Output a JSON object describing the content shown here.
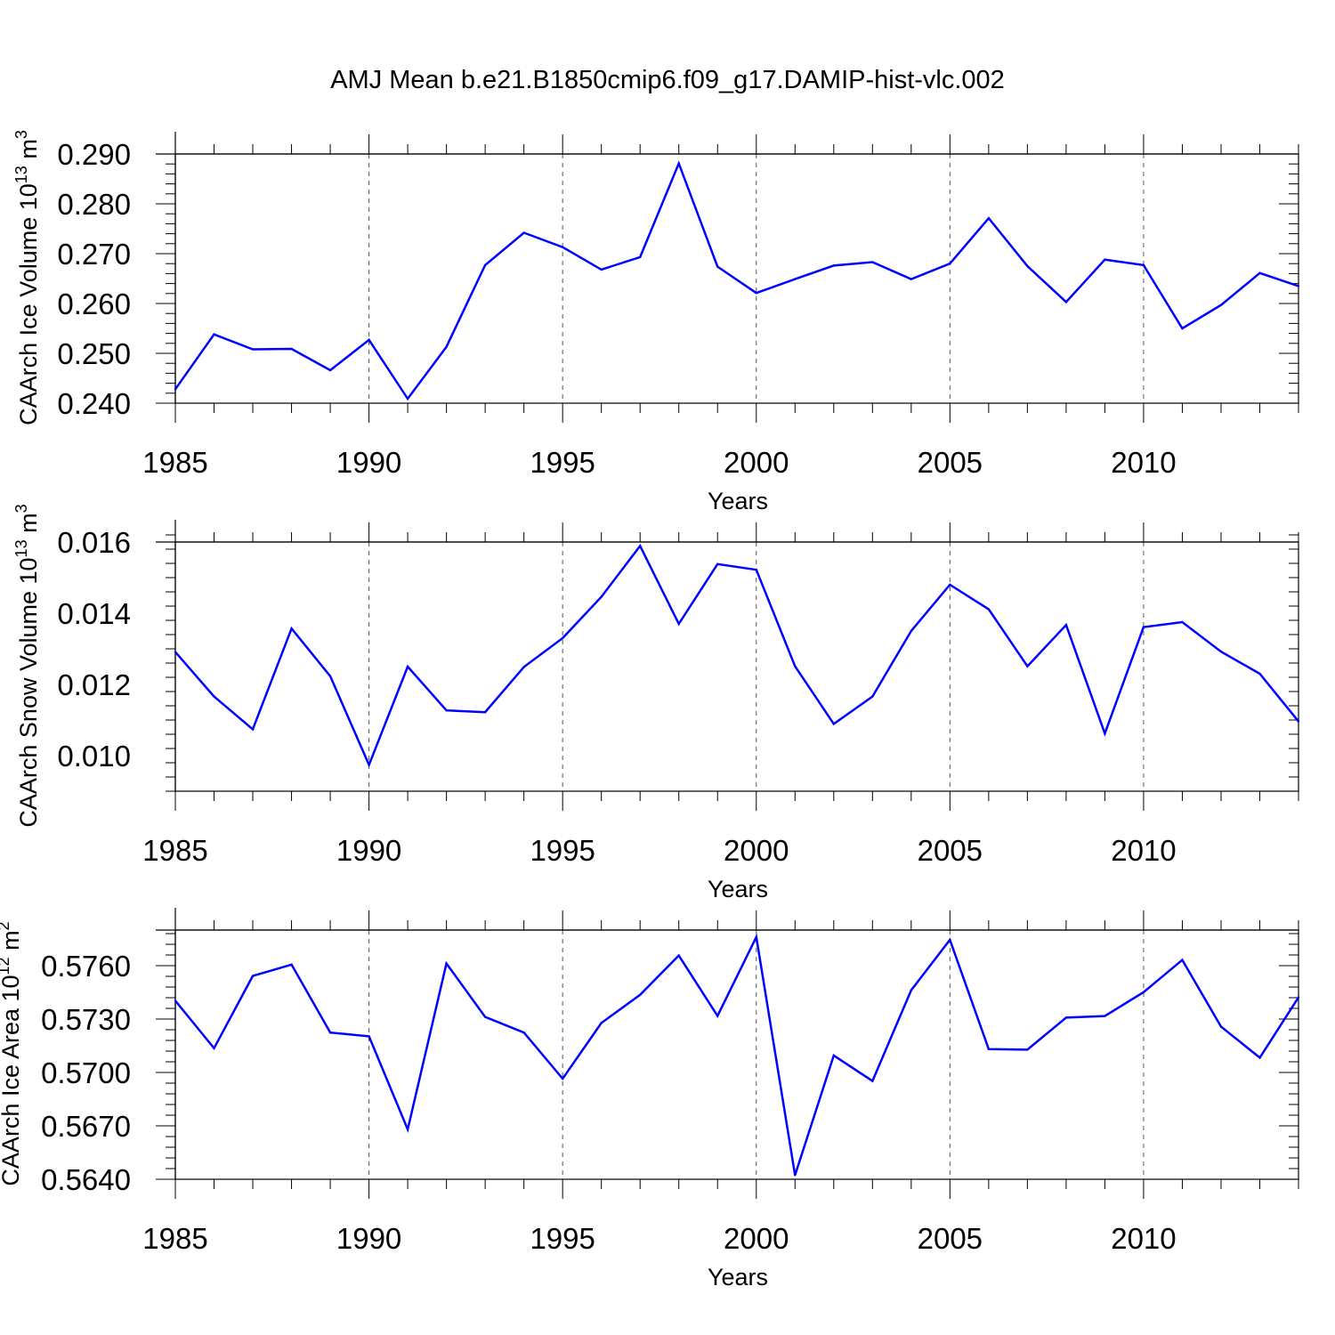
{
  "figure_title": "AMJ Mean b.e21.B1850cmip6.f09_g17.DAMIP-hist-vlc.002",
  "chart_data": [
    {
      "type": "line",
      "title": "AMJ Mean b.e21.B1850cmip6.f09_g17.DAMIP-hist-vlc.002",
      "ylabel": {
        "main": "CAArch Ice Volume 10",
        "exp": "13",
        "unit": " m",
        "unit_exp": "3"
      },
      "xlabel": "Years",
      "xlim": [
        1985,
        2014
      ],
      "ylim": [
        0.24,
        0.29
      ],
      "yticks": [
        "0.240",
        "0.250",
        "0.260",
        "0.270",
        "0.280",
        "0.290"
      ],
      "xticks": [
        "1985",
        "1990",
        "1995",
        "2000",
        "2005",
        "2010"
      ],
      "grid": "vertical dashed at major x ticks",
      "series": [
        {
          "name": "Ice Volume",
          "color": "#0000ff",
          "x": [
            1985,
            1986,
            1987,
            1988,
            1989,
            1990,
            1991,
            1992,
            1993,
            1994,
            1995,
            1996,
            1997,
            1998,
            1999,
            2000,
            2001,
            2002,
            2003,
            2004,
            2005,
            2006,
            2007,
            2008,
            2009,
            2010,
            2011,
            2012,
            2013,
            2014
          ],
          "values": [
            0.2428,
            0.2538,
            0.2508,
            0.2509,
            0.2466,
            0.2527,
            0.2409,
            0.2513,
            0.2677,
            0.2742,
            0.2713,
            0.2668,
            0.2693,
            0.2881,
            0.2674,
            0.2621,
            0.2649,
            0.2676,
            0.2683,
            0.2649,
            0.268,
            0.2771,
            0.2675,
            0.2603,
            0.2688,
            0.2677,
            0.255,
            0.2597,
            0.2661,
            0.2635
          ]
        }
      ]
    },
    {
      "type": "line",
      "ylabel": {
        "main": "CAArch Snow Volume 10",
        "exp": "13",
        "unit": " m",
        "unit_exp": "3"
      },
      "xlabel": "Years",
      "xlim": [
        1985,
        2014
      ],
      "ylim": [
        0.009,
        0.016
      ],
      "yticks": [
        "0.010",
        "0.012",
        "0.014",
        "0.016"
      ],
      "xticks": [
        "1985",
        "1990",
        "1995",
        "2000",
        "2005",
        "2010"
      ],
      "grid": "vertical dashed at major x ticks",
      "series": [
        {
          "name": "Snow Volume",
          "color": "#0000ff",
          "x": [
            1985,
            1986,
            1987,
            1988,
            1989,
            1990,
            1991,
            1992,
            1993,
            1994,
            1995,
            1996,
            1997,
            1998,
            1999,
            2000,
            2001,
            2002,
            2003,
            2004,
            2005,
            2006,
            2007,
            2008,
            2009,
            2010,
            2011,
            2012,
            2013,
            2014
          ],
          "values": [
            0.01291,
            0.01166,
            0.01074,
            0.01357,
            0.01223,
            0.00974,
            0.0125,
            0.01127,
            0.01122,
            0.01249,
            0.0133,
            0.01446,
            0.01589,
            0.0137,
            0.01538,
            0.01522,
            0.01251,
            0.01089,
            0.01166,
            0.0135,
            0.0148,
            0.01411,
            0.01251,
            0.01367,
            0.01062,
            0.01361,
            0.01375,
            0.01292,
            0.0123,
            0.01096
          ]
        }
      ]
    },
    {
      "type": "line",
      "ylabel": {
        "main": "CAArch Ice Area 10",
        "exp": "12",
        "unit": " m",
        "unit_exp": "2"
      },
      "xlabel": "Years",
      "xlim": [
        1985,
        2014
      ],
      "ylim": [
        0.564,
        0.578
      ],
      "yticks": [
        "0.5640",
        "0.5670",
        "0.5700",
        "0.5730",
        "0.5760"
      ],
      "xticks": [
        "1985",
        "1990",
        "1995",
        "2000",
        "2005",
        "2010"
      ],
      "grid": "vertical dashed at major x ticks",
      "series": [
        {
          "name": "Ice Area",
          "color": "#0000ff",
          "x": [
            1985,
            1986,
            1987,
            1988,
            1989,
            1990,
            1991,
            1992,
            1993,
            1994,
            1995,
            1996,
            1997,
            1998,
            1999,
            2000,
            2001,
            2002,
            2003,
            2004,
            2005,
            2006,
            2007,
            2008,
            2009,
            2010,
            2011,
            2012,
            2013,
            2014
          ],
          "values": [
            0.57403,
            0.57136,
            0.57542,
            0.57606,
            0.57224,
            0.57203,
            0.5668,
            0.57612,
            0.57312,
            0.57224,
            0.56965,
            0.57278,
            0.57436,
            0.57657,
            0.57318,
            0.57761,
            0.56423,
            0.57095,
            0.56952,
            0.57462,
            0.57745,
            0.57131,
            0.57128,
            0.57308,
            0.57317,
            0.57451,
            0.57632,
            0.57257,
            0.57083,
            0.57422
          ]
        }
      ]
    }
  ]
}
